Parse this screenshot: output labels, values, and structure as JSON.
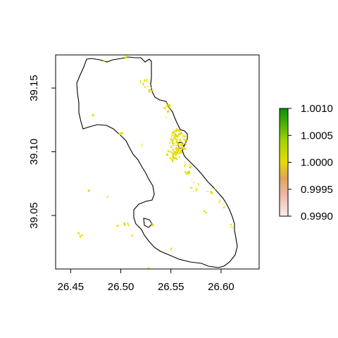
{
  "chart_data": {
    "type": "raster-map",
    "title": "",
    "xlabel": "",
    "ylabel": "",
    "x_ticks": [
      "26.45",
      "26.50",
      "26.55",
      "26.60"
    ],
    "y_ticks": [
      "39.05",
      "39.10",
      "39.15"
    ],
    "xlim": [
      26.435,
      26.638
    ],
    "ylim": [
      39.008,
      39.176
    ],
    "legend": {
      "placement": "right",
      "labels": [
        "1.0010",
        "1.0005",
        "1.0000",
        "0.9995",
        "0.9990"
      ],
      "range": [
        0.999,
        1.001
      ],
      "colors": [
        "#fce8e8",
        "#eaa07a",
        "#e6dd00",
        "#7cc400",
        "#0a8f0a"
      ]
    },
    "raster_color": "#e6dc00",
    "raster_value": 1.0,
    "grid": false
  }
}
